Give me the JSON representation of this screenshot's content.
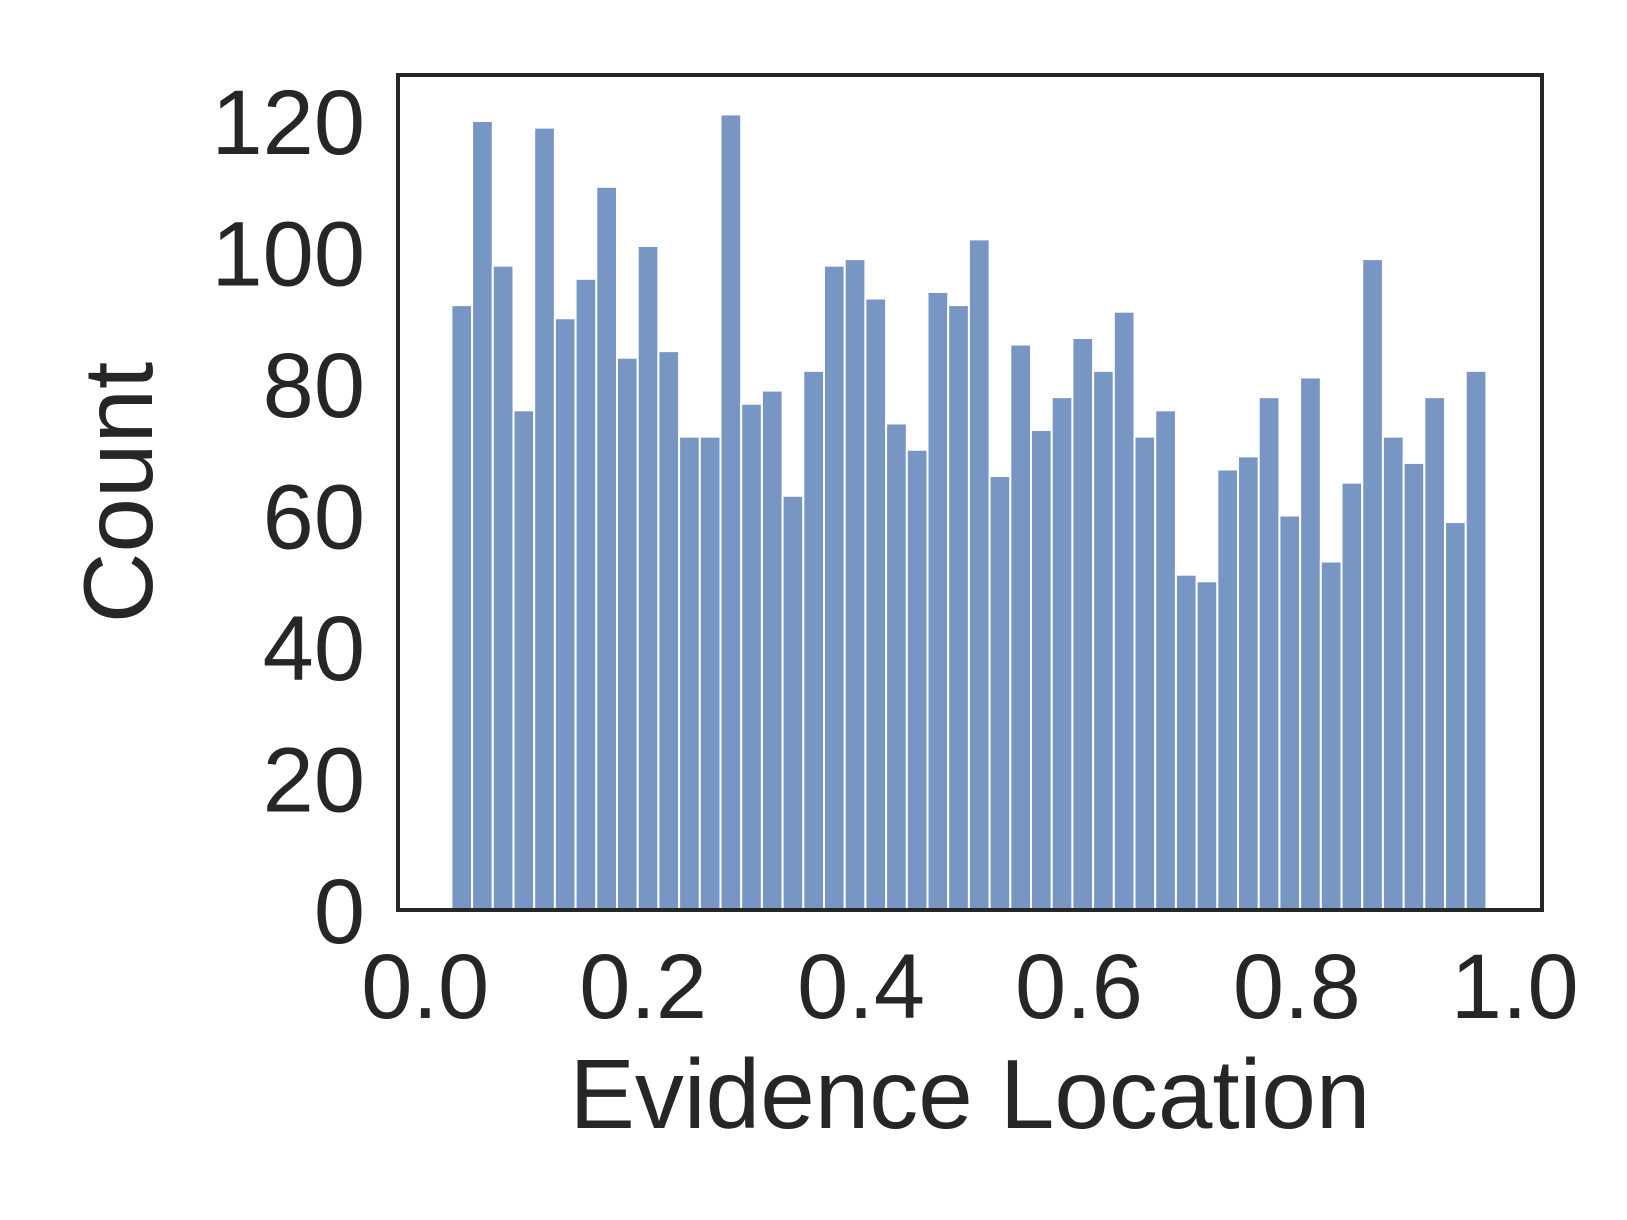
{
  "chart_data": {
    "type": "bar",
    "title": "",
    "xlabel": "Evidence Location",
    "ylabel": "Count",
    "xlim": [
      -0.025,
      1.025
    ],
    "ylim": [
      0,
      127
    ],
    "grid": false,
    "legend": "none",
    "bar_color": "#7896c4",
    "frame_color": "#262626",
    "x_ticks": [
      0.0,
      0.2,
      0.4,
      0.6,
      0.8,
      1.0
    ],
    "x_tick_labels": [
      "0.0",
      "0.2",
      "0.4",
      "0.6",
      "0.8",
      "1.0"
    ],
    "y_ticks": [
      0,
      20,
      40,
      60,
      80,
      100,
      120
    ],
    "y_tick_labels": [
      "0",
      "20",
      "40",
      "60",
      "80",
      "100",
      "120"
    ],
    "bin_width": 0.019,
    "bin_starts": [
      0.024,
      0.043,
      0.062,
      0.081,
      0.1,
      0.119,
      0.138,
      0.157,
      0.176,
      0.195,
      0.214,
      0.233,
      0.252,
      0.271,
      0.29,
      0.309,
      0.328,
      0.347,
      0.366,
      0.385,
      0.404,
      0.423,
      0.442,
      0.461,
      0.48,
      0.499,
      0.518,
      0.537,
      0.556,
      0.575,
      0.594,
      0.613,
      0.632,
      0.651,
      0.67,
      0.689,
      0.708,
      0.727,
      0.746,
      0.765,
      0.784,
      0.803,
      0.822,
      0.841,
      0.86,
      0.879,
      0.898,
      0.917,
      0.936,
      0.955,
      0.974
    ],
    "values": [
      92,
      120,
      98,
      76,
      119,
      90,
      96,
      110,
      84,
      101,
      85,
      72,
      72,
      121,
      77,
      79,
      63,
      82,
      98,
      99,
      93,
      74,
      70,
      94,
      92,
      102,
      66,
      86,
      73,
      78,
      87,
      82,
      91,
      72,
      76,
      51,
      50,
      67,
      69,
      78,
      60,
      81,
      53,
      65,
      99,
      72,
      68,
      78,
      59,
      82
    ]
  }
}
